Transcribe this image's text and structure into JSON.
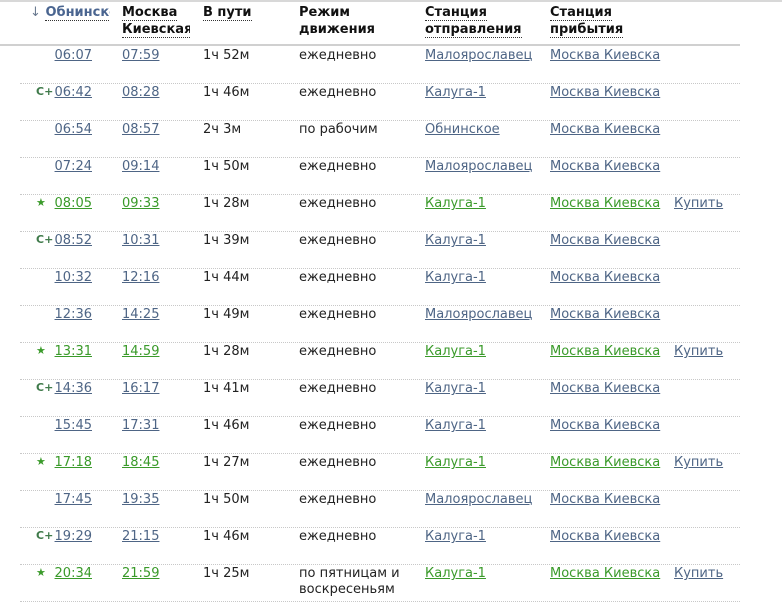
{
  "header": {
    "sort_arrow": "↓",
    "col_dep": "Обнинское",
    "col_arr_1": "Москва",
    "col_arr_2": "Киевская",
    "col_dur": "В пути",
    "col_mode_1": "Режим",
    "col_mode_2": "движения",
    "col_from_1": "Станция",
    "col_from_2": "отправления",
    "col_to_1": "Станция",
    "col_to_2": "прибытия"
  },
  "colors": {
    "link": "#4e6585",
    "green": "#3a9a2a"
  },
  "rows": [
    {
      "icon": "",
      "dep": "06:07",
      "arr": "07:59",
      "dur": "1ч 52м",
      "mode": "ежедневно",
      "from": "Малоярославец",
      "to": "Москва Киевска",
      "buy": "",
      "green": false
    },
    {
      "icon": "express-plus",
      "dep": "06:42",
      "arr": "08:28",
      "dur": "1ч 46м",
      "mode": "ежедневно",
      "from": "Калуга-1",
      "to": "Москва Киевска",
      "buy": "",
      "green": false
    },
    {
      "icon": "",
      "dep": "06:54",
      "arr": "08:57",
      "dur": "2ч 3м",
      "mode": "по рабочим",
      "from": "Обнинское",
      "to": "Москва Киевска",
      "buy": "",
      "green": false
    },
    {
      "icon": "",
      "dep": "07:24",
      "arr": "09:14",
      "dur": "1ч 50м",
      "mode": "ежедневно",
      "from": "Малоярославец",
      "to": "Москва Киевска",
      "buy": "",
      "green": false
    },
    {
      "icon": "star",
      "dep": "08:05",
      "arr": "09:33",
      "dur": "1ч 28м",
      "mode": "ежедневно",
      "from": "Калуга-1",
      "to": "Москва Киевска",
      "buy": "Купить",
      "green": true
    },
    {
      "icon": "express-plus",
      "dep": "08:52",
      "arr": "10:31",
      "dur": "1ч 39м",
      "mode": "ежедневно",
      "from": "Калуга-1",
      "to": "Москва Киевска",
      "buy": "",
      "green": false
    },
    {
      "icon": "",
      "dep": "10:32",
      "arr": "12:16",
      "dur": "1ч 44м",
      "mode": "ежедневно",
      "from": "Калуга-1",
      "to": "Москва Киевска",
      "buy": "",
      "green": false
    },
    {
      "icon": "",
      "dep": "12:36",
      "arr": "14:25",
      "dur": "1ч 49м",
      "mode": "ежедневно",
      "from": "Малоярославец",
      "to": "Москва Киевска",
      "buy": "",
      "green": false
    },
    {
      "icon": "star",
      "dep": "13:31",
      "arr": "14:59",
      "dur": "1ч 28м",
      "mode": "ежедневно",
      "from": "Калуга-1",
      "to": "Москва Киевска",
      "buy": "Купить",
      "green": true
    },
    {
      "icon": "express-plus",
      "dep": "14:36",
      "arr": "16:17",
      "dur": "1ч 41м",
      "mode": "ежедневно",
      "from": "Калуга-1",
      "to": "Москва Киевска",
      "buy": "",
      "green": false
    },
    {
      "icon": "",
      "dep": "15:45",
      "arr": "17:31",
      "dur": "1ч 46м",
      "mode": "ежедневно",
      "from": "Калуга-1",
      "to": "Москва Киевска",
      "buy": "",
      "green": false
    },
    {
      "icon": "star",
      "dep": "17:18",
      "arr": "18:45",
      "dur": "1ч 27м",
      "mode": "ежедневно",
      "from": "Калуга-1",
      "to": "Москва Киевска",
      "buy": "Купить",
      "green": true
    },
    {
      "icon": "",
      "dep": "17:45",
      "arr": "19:35",
      "dur": "1ч 50м",
      "mode": "ежедневно",
      "from": "Малоярославец",
      "to": "Москва Киевска",
      "buy": "",
      "green": false
    },
    {
      "icon": "express-plus",
      "dep": "19:29",
      "arr": "21:15",
      "dur": "1ч 46м",
      "mode": "ежедневно",
      "from": "Калуга-1",
      "to": "Москва Киевска",
      "buy": "",
      "green": false
    },
    {
      "icon": "star",
      "dep": "20:34",
      "arr": "21:59",
      "dur": "1ч 25м",
      "mode": "по пятницам и воскресеньям",
      "from": "Калуга-1",
      "to": "Москва Киевска",
      "buy": "Купить",
      "green": true
    }
  ]
}
